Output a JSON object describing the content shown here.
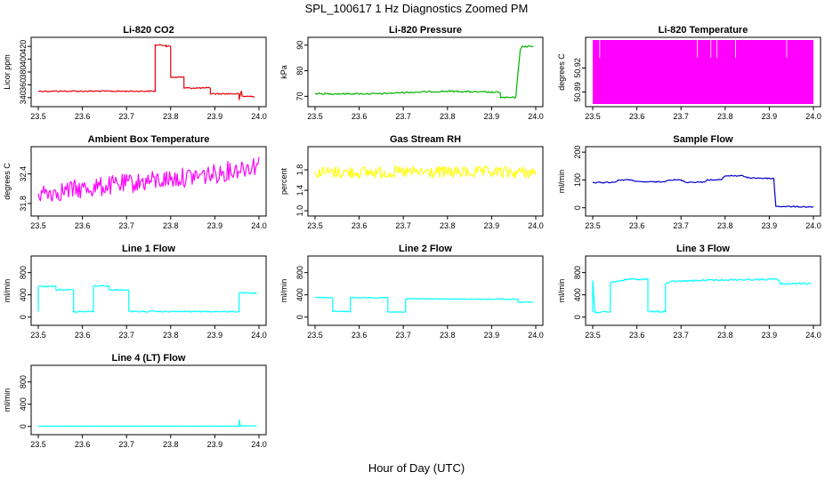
{
  "figure": {
    "title": "SPL_100617  1 Hz Diagnostics Zoomed PM",
    "xlabel": "Hour of Day (UTC)"
  },
  "chart_data": [
    {
      "type": "line",
      "title": "Li-820 CO2",
      "ylabel": "Licor ppm",
      "color": "#e8000b",
      "xlim": [
        23.5,
        24.0
      ],
      "ylim": [
        330,
        430
      ],
      "xticks": [
        "23.5",
        "23.6",
        "23.7",
        "23.8",
        "23.9",
        "24.0"
      ],
      "yticks": [
        {
          "v": 340,
          "label": "340"
        },
        {
          "v": 360,
          "label": "360"
        },
        {
          "v": 380,
          "label": "380"
        },
        {
          "v": 400,
          "label": "400"
        },
        {
          "v": 420,
          "label": "420"
        }
      ],
      "series": [
        {
          "name": "CO2",
          "noise": 1,
          "points": [
            [
              23.5,
              350
            ],
            [
              23.765,
              350
            ],
            [
              23.765,
              422
            ],
            [
              23.79,
              422
            ],
            [
              23.79,
              420
            ],
            [
              23.8,
              420
            ],
            [
              23.8,
              372
            ],
            [
              23.83,
              372
            ],
            [
              23.83,
              355
            ],
            [
              23.89,
              355
            ],
            [
              23.89,
              346
            ],
            [
              23.955,
              346
            ],
            [
              23.955,
              336
            ],
            [
              23.96,
              350
            ],
            [
              23.962,
              342
            ],
            [
              23.99,
              342
            ]
          ]
        }
      ]
    },
    {
      "type": "line",
      "title": "Li-820 Pressure",
      "ylabel": "kPa",
      "color": "#00b400",
      "xlim": [
        23.5,
        24.0
      ],
      "ylim": [
        67,
        92
      ],
      "xticks": [
        "23.5",
        "23.6",
        "23.7",
        "23.8",
        "23.9",
        "24.0"
      ],
      "yticks": [
        {
          "v": 70,
          "label": "70"
        },
        {
          "v": 80,
          "label": "80"
        },
        {
          "v": 90,
          "label": "90"
        }
      ],
      "series": [
        {
          "name": "Pressure",
          "noise": 0.3,
          "points": [
            [
              23.5,
              71
            ],
            [
              23.65,
              71
            ],
            [
              23.7,
              71.5
            ],
            [
              23.8,
              72
            ],
            [
              23.92,
              71.5
            ],
            [
              23.92,
              69.5
            ],
            [
              23.955,
              69.5
            ],
            [
              23.96,
              80
            ],
            [
              23.965,
              88
            ],
            [
              23.97,
              89.5
            ],
            [
              23.995,
              89.5
            ]
          ]
        }
      ]
    },
    {
      "type": "line",
      "title": "Li-820 Temperature",
      "ylabel": "degrees C",
      "color": "#ff00ff",
      "xlim": [
        23.5,
        24.0
      ],
      "ylim": [
        50.875,
        50.955
      ],
      "xticks": [
        "23.5",
        "23.6",
        "23.7",
        "23.8",
        "23.9",
        "24.0"
      ],
      "yticks": [
        {
          "v": 50.89,
          "label": "50.89"
        },
        {
          "v": 50.92,
          "label": "50.92"
        }
      ],
      "series": [
        {
          "name": "Temperature",
          "band": [
            50.875,
            50.955
          ],
          "points": [
            [
              23.5,
              50.95
            ],
            [
              24.0,
              50.95
            ]
          ]
        }
      ]
    },
    {
      "type": "line",
      "title": "Ambient Box Temperature",
      "ylabel": "degrees C",
      "color": "#ff00ff",
      "xlim": [
        23.5,
        24.0
      ],
      "ylim": [
        31.6,
        32.9
      ],
      "xticks": [
        "23.5",
        "23.6",
        "23.7",
        "23.8",
        "23.9",
        "24.0"
      ],
      "yticks": [
        {
          "v": 31.8,
          "label": "31.8"
        },
        {
          "v": 32.4,
          "label": "32.4"
        }
      ],
      "series": [
        {
          "name": "Box Temp",
          "noise": 0.2,
          "points": [
            [
              23.5,
              32.0
            ],
            [
              23.6,
              32.1
            ],
            [
              23.7,
              32.2
            ],
            [
              23.8,
              32.3
            ],
            [
              23.9,
              32.4
            ],
            [
              24.0,
              32.6
            ]
          ]
        }
      ]
    },
    {
      "type": "line",
      "title": "Gas Stream RH",
      "ylabel": "percent",
      "color": "#ffff00",
      "xlim": [
        23.5,
        24.0
      ],
      "ylim": [
        0.95,
        2.2
      ],
      "xticks": [
        "23.5",
        "23.6",
        "23.7",
        "23.8",
        "23.9",
        "24.0"
      ],
      "yticks": [
        {
          "v": 1.0,
          "label": "1.0"
        },
        {
          "v": 1.4,
          "label": "1.4"
        },
        {
          "v": 1.8,
          "label": "1.8"
        }
      ],
      "series": [
        {
          "name": "RH",
          "noise": 0.12,
          "points": [
            [
              23.5,
              1.75
            ],
            [
              24.0,
              1.75
            ]
          ]
        }
      ]
    },
    {
      "type": "line",
      "title": "Sample Flow",
      "ylabel": "ml/min",
      "color": "#0000cd",
      "xlim": [
        23.5,
        24.0
      ],
      "ylim": [
        -20,
        210
      ],
      "xticks": [
        "23.5",
        "23.6",
        "23.7",
        "23.8",
        "23.9",
        "24.0"
      ],
      "yticks": [
        {
          "v": 0,
          "label": "0"
        },
        {
          "v": 100,
          "label": "100"
        },
        {
          "v": 200,
          "label": "200"
        }
      ],
      "series": [
        {
          "name": "Sample",
          "noise": 2,
          "points": [
            [
              23.5,
              90
            ],
            [
              23.55,
              92
            ],
            [
              23.56,
              100
            ],
            [
              23.59,
              100
            ],
            [
              23.6,
              93
            ],
            [
              23.66,
              93
            ],
            [
              23.67,
              100
            ],
            [
              23.7,
              100
            ],
            [
              23.71,
              92
            ],
            [
              23.75,
              92
            ],
            [
              23.76,
              100
            ],
            [
              23.79,
              100
            ],
            [
              23.8,
              115
            ],
            [
              23.84,
              115
            ],
            [
              23.85,
              108
            ],
            [
              23.91,
              105
            ],
            [
              23.915,
              5
            ],
            [
              24.0,
              3
            ]
          ]
        }
      ]
    },
    {
      "type": "line",
      "title": "Line 1 Flow",
      "ylabel": "ml/min",
      "color": "#00ffff",
      "xlim": [
        23.5,
        24.0
      ],
      "ylim": [
        -100,
        1050
      ],
      "xticks": [
        "23.5",
        "23.6",
        "23.7",
        "23.8",
        "23.9",
        "24.0"
      ],
      "yticks": [
        {
          "v": 0,
          "label": "0"
        },
        {
          "v": 400,
          "label": "400"
        },
        {
          "v": 800,
          "label": "800"
        }
      ],
      "series": [
        {
          "name": "Line 1",
          "noise": 12,
          "points": [
            [
              23.5,
              100
            ],
            [
              23.5,
              550
            ],
            [
              23.54,
              550
            ],
            [
              23.54,
              490
            ],
            [
              23.58,
              490
            ],
            [
              23.58,
              100
            ],
            [
              23.625,
              100
            ],
            [
              23.625,
              560
            ],
            [
              23.66,
              560
            ],
            [
              23.66,
              490
            ],
            [
              23.705,
              490
            ],
            [
              23.705,
              100
            ],
            [
              23.955,
              100
            ],
            [
              23.955,
              430
            ],
            [
              23.995,
              430
            ]
          ]
        }
      ]
    },
    {
      "type": "line",
      "title": "Line 2 Flow",
      "ylabel": "ml/min",
      "color": "#00ffff",
      "xlim": [
        23.5,
        24.0
      ],
      "ylim": [
        -100,
        1050
      ],
      "xticks": [
        "23.5",
        "23.6",
        "23.7",
        "23.8",
        "23.9",
        "24.0"
      ],
      "yticks": [
        {
          "v": 0,
          "label": "0"
        },
        {
          "v": 400,
          "label": "400"
        },
        {
          "v": 800,
          "label": "800"
        }
      ],
      "series": [
        {
          "name": "Line 2",
          "noise": 8,
          "points": [
            [
              23.5,
              350
            ],
            [
              23.54,
              350
            ],
            [
              23.54,
              100
            ],
            [
              23.58,
              100
            ],
            [
              23.58,
              350
            ],
            [
              23.665,
              350
            ],
            [
              23.665,
              90
            ],
            [
              23.705,
              90
            ],
            [
              23.705,
              330
            ],
            [
              23.96,
              320
            ],
            [
              23.96,
              270
            ],
            [
              23.995,
              270
            ]
          ]
        }
      ]
    },
    {
      "type": "line",
      "title": "Line 3 Flow",
      "ylabel": "ml/min",
      "color": "#00ffff",
      "xlim": [
        23.5,
        24.0
      ],
      "ylim": [
        -100,
        1050
      ],
      "xticks": [
        "23.5",
        "23.6",
        "23.7",
        "23.8",
        "23.9",
        "24.0"
      ],
      "yticks": [
        {
          "v": 0,
          "label": "0"
        },
        {
          "v": 400,
          "label": "400"
        },
        {
          "v": 800,
          "label": "800"
        }
      ],
      "series": [
        {
          "name": "Line 3",
          "noise": 15,
          "points": [
            [
              23.5,
              90
            ],
            [
              23.5,
              650
            ],
            [
              23.505,
              90
            ],
            [
              23.54,
              90
            ],
            [
              23.54,
              620
            ],
            [
              23.56,
              650
            ],
            [
              23.58,
              680
            ],
            [
              23.625,
              680
            ],
            [
              23.625,
              100
            ],
            [
              23.665,
              100
            ],
            [
              23.665,
              600
            ],
            [
              23.68,
              640
            ],
            [
              23.75,
              660
            ],
            [
              23.8,
              670
            ],
            [
              23.92,
              680
            ],
            [
              23.925,
              600
            ],
            [
              23.995,
              600
            ]
          ]
        }
      ]
    },
    {
      "type": "line",
      "title": "Line 4 (LT) Flow",
      "ylabel": "ml/min",
      "color": "#00ffff",
      "xlim": [
        23.5,
        24.0
      ],
      "ylim": [
        -100,
        1050
      ],
      "xticks": [
        "23.5",
        "23.6",
        "23.7",
        "23.8",
        "23.9",
        "24.0"
      ],
      "yticks": [
        {
          "v": 0,
          "label": "0"
        },
        {
          "v": 400,
          "label": "400"
        },
        {
          "v": 800,
          "label": "800"
        }
      ],
      "series": [
        {
          "name": "Line 4",
          "noise": 2,
          "points": [
            [
              23.5,
              5
            ],
            [
              23.955,
              5
            ],
            [
              23.955,
              120
            ],
            [
              23.958,
              10
            ],
            [
              23.995,
              10
            ]
          ]
        }
      ]
    }
  ]
}
